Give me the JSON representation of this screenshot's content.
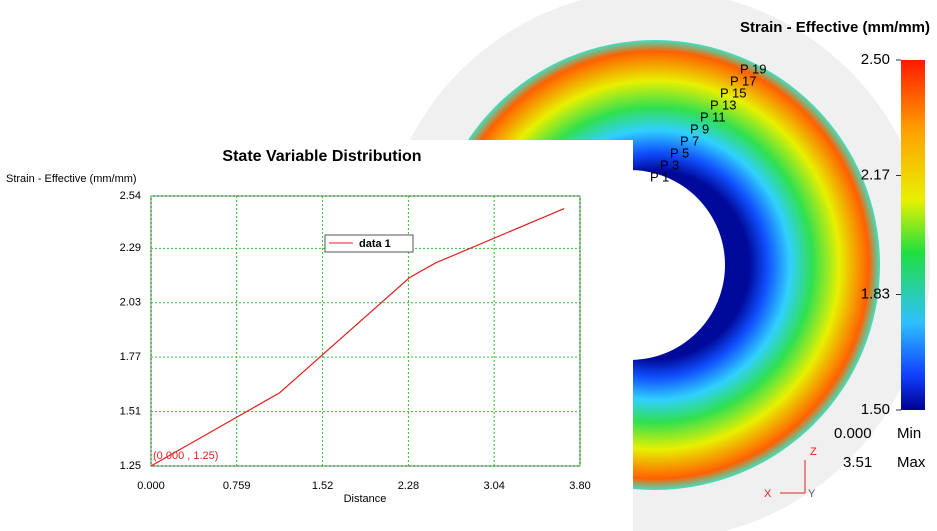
{
  "chart_data": {
    "type": "line",
    "title": "State Variable Distribution",
    "y_label": "Strain - Effective (mm/mm)",
    "x_label": "Distance",
    "x": [
      0,
      1.14,
      2.29,
      2.52,
      3.66
    ],
    "series": [
      {
        "name": "data 1",
        "color": "#e02020",
        "values": [
          1.25,
          1.6,
          2.15,
          2.22,
          2.48
        ]
      }
    ],
    "xlim": [
      0,
      3.8
    ],
    "ylim": [
      1.25,
      2.54
    ],
    "xticks": [
      {
        "value": 0,
        "label": "0.000"
      },
      0.759,
      1.52,
      2.28,
      3.04,
      {
        "value": 3.8,
        "label": "3.80"
      }
    ],
    "yticks": [
      1.25,
      1.51,
      1.77,
      2.03,
      2.29,
      2.54
    ],
    "grid": true,
    "annotation": "(0.000 , 1.25)"
  },
  "contour_legend": {
    "title": "Strain - Effective (mm/mm)",
    "range": [
      1.5,
      2.5
    ],
    "ticks": [
      {
        "value": 2.5,
        "label": "2.50"
      },
      2.17,
      1.83,
      {
        "value": 1.5,
        "label": "1.50"
      }
    ],
    "min": {
      "value": 0,
      "label": "0.000"
    },
    "min_label": "Min",
    "max": 3.51,
    "max_label": "Max"
  },
  "points": [
    "P 19",
    "P 17",
    "P 15",
    "P 13",
    "P 11",
    "P 9",
    "P 7",
    "P 5",
    "P 3",
    "P 1"
  ],
  "axes_triad": [
    "Z",
    "X",
    "Y"
  ]
}
